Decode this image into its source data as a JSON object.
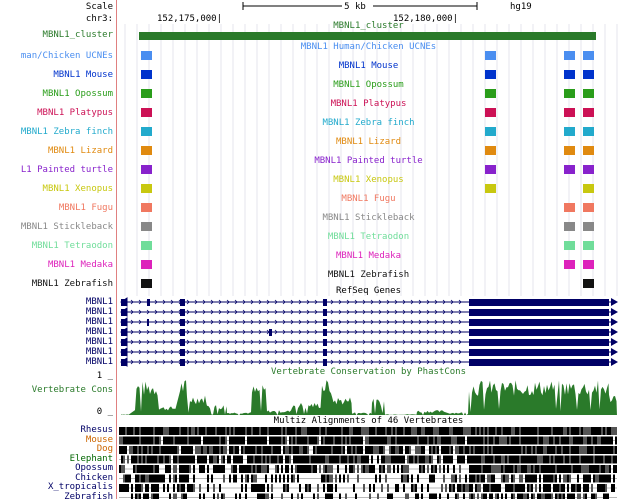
{
  "ruler": {
    "scale_label": "Scale",
    "chrom_label": "chr3:",
    "scale_text": "5 kb",
    "assembly": "hg19",
    "pos1": "152,175,000|",
    "pos2": "152,180,000|"
  },
  "cluster": {
    "label": "MBNL1_cluster",
    "center": "MBNL1_cluster",
    "color": "#2a7a2a"
  },
  "ucne_tracks": [
    {
      "label": "man/Chicken UCNEs",
      "center": "MBNL1 Human/Chicken UCNEs",
      "color": "#4a8ef0"
    },
    {
      "label": "MBNL1 Mouse",
      "center": "MBNL1 Mouse",
      "color": "#0033cc"
    },
    {
      "label": "MBNL1 Opossum",
      "center": "MBNL1 Opossum",
      "color": "#2a9d1a"
    },
    {
      "label": "MBNL1 Platypus",
      "center": "MBNL1 Platypus",
      "color": "#cc1155"
    },
    {
      "label": "MBNL1 Zebra finch",
      "center": "MBNL1 Zebra finch",
      "color": "#22aacc"
    },
    {
      "label": "MBNL1 Lizard",
      "center": "MBNL1 Lizard",
      "color": "#e08a10"
    },
    {
      "label": "L1 Painted turtle",
      "center": "MBNL1 Painted turtle",
      "color": "#8822cc"
    },
    {
      "label": "MBNL1 Xenopus",
      "center": "MBNL1 Xenopus",
      "color": "#c8c810"
    },
    {
      "label": "MBNL1 Fugu",
      "center": "MBNL1 Fugu",
      "color": "#f07860"
    },
    {
      "label": "MBNL1 Stickleback",
      "center": "MBNL1 Stickleback",
      "color": "#888888"
    },
    {
      "label": "MBNL1 Tetraodon",
      "center": "MBNL1 Tetraodon",
      "color": "#70dd9a"
    },
    {
      "label": "MBNL1 Medaka",
      "center": "MBNL1 Medaka",
      "color": "#dd22bb"
    },
    {
      "label": "MBNL1 Zebrafish",
      "center": "MBNL1 Zebrafish",
      "color": "#111111"
    }
  ],
  "refseq": {
    "title": "RefSeq Genes",
    "gene_label": "MBNL1",
    "color": "#000066",
    "rows": 7
  },
  "cons": {
    "title": "Vertebrate Conservation by PhastCons",
    "label": "Vertebrate Cons",
    "ymax": "1 _",
    "ymin": "0 _",
    "color": "#2a7a2a"
  },
  "multiz": {
    "title": "Multiz Alignments of 46 Vertebrates",
    "species": [
      "Rhesus",
      "Mouse",
      "Dog",
      "Elephant",
      "Opossum",
      "Chicken",
      "X_tropicalis",
      "Zebrafish"
    ],
    "species_colors": [
      "#000066",
      "#cc6600",
      "#cc6600",
      "#006600",
      "#000066",
      "#000066",
      "#000066",
      "#000066"
    ]
  }
}
